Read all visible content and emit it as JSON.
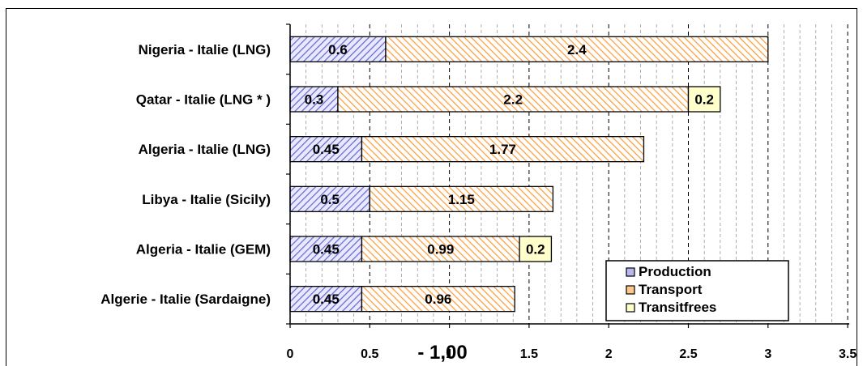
{
  "chart_data": {
    "type": "bar",
    "orientation": "horizontal",
    "stacked": true,
    "categories": [
      "Nigeria - Italie (LNG)",
      "Qatar - Italie (LNG * )",
      "Algeria - Italie (LNG)",
      "Libya - Italie (Sicily)",
      "Algeria - Italie (GEM)",
      "Algerie - Italie (Sardaigne)"
    ],
    "series": [
      {
        "name": "Production",
        "color": "#6666cc",
        "pattern": "hatch-diagonal",
        "values": [
          0.6,
          0.3,
          0.45,
          0.5,
          0.45,
          0.45
        ],
        "labels": [
          "0.6",
          "0.3",
          "0.45",
          "0.5",
          "0.45",
          "0.45"
        ]
      },
      {
        "name": "Transport",
        "color": "#ff9933",
        "pattern": "hatch-diagonal",
        "values": [
          2.4,
          2.2,
          1.77,
          1.15,
          0.99,
          0.96
        ],
        "labels": [
          "2.4",
          "2.2",
          "1.77",
          "1.15",
          "0.99",
          "0.96"
        ]
      },
      {
        "name": "Transitfrees",
        "color": "#ffffcc",
        "pattern": "solid",
        "values": [
          0,
          0.2,
          0,
          0,
          0.2,
          0
        ],
        "labels": [
          "",
          "0.2",
          "",
          "",
          "0.2",
          ""
        ]
      }
    ],
    "xlim": [
      0,
      3.5
    ],
    "xticks": [
      "0",
      "0.5",
      "1",
      "1.5",
      "2",
      "2.5",
      "3",
      "3.5"
    ],
    "xlabel": "- 1,00",
    "grid": "vertical dashed",
    "legend_position": "bottom-right"
  }
}
